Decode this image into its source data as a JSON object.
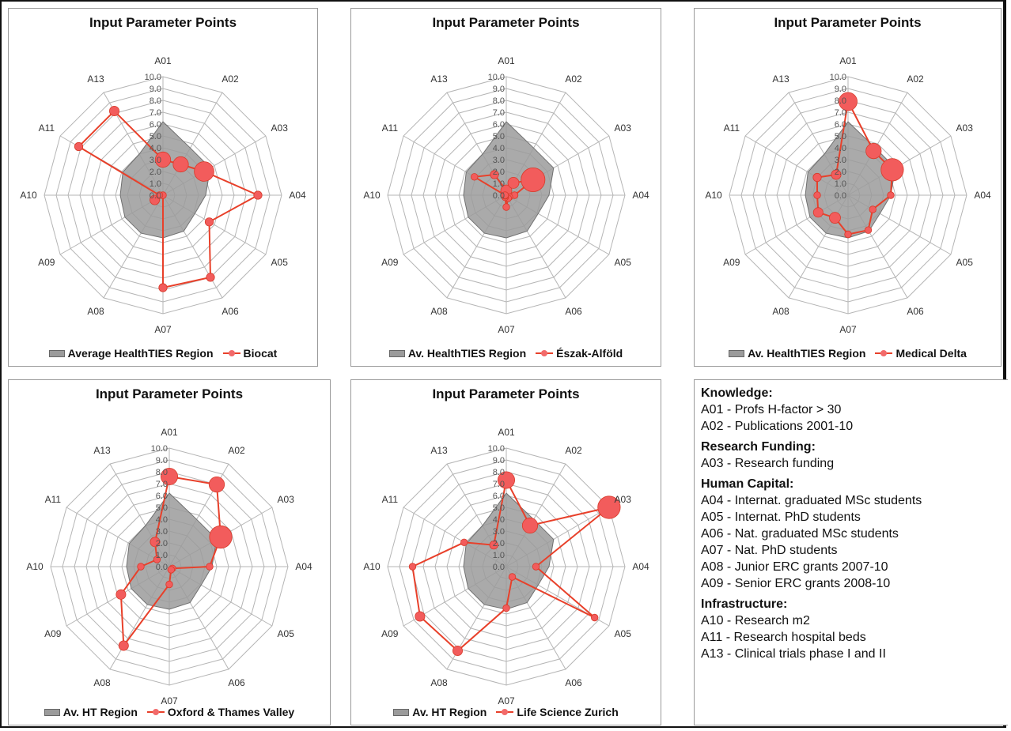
{
  "chart_data": [
    {
      "type": "radar",
      "title": "Input Parameter Points",
      "categories": [
        "A01",
        "A02",
        "A03",
        "A04",
        "A05",
        "A06",
        "A07",
        "A08",
        "A09",
        "A10",
        "A11",
        "A13"
      ],
      "rlim": [
        0,
        10
      ],
      "ticks": [
        "0.0",
        "1.0",
        "2.0",
        "3.0",
        "4.0",
        "5.0",
        "6.0",
        "7.0",
        "8.0",
        "9.0",
        "10.0"
      ],
      "series": [
        {
          "name": "Average HealthTIES Region",
          "style": "area",
          "color": "#9b9b9b",
          "values": [
            6.2,
            4.6,
            4.6,
            3.6,
            3.1,
            3.5,
            3.6,
            3.7,
            3.7,
            3.6,
            3.9,
            4.0
          ]
        },
        {
          "name": "Biocat",
          "style": "line",
          "color": "#e8402a",
          "values": [
            3.0,
            3.0,
            4.0,
            8.0,
            4.5,
            8.0,
            7.8,
            0.0,
            0.8,
            0.3,
            8.2,
            8.2
          ],
          "markers": [
            0.8,
            0.8,
            1.1,
            0.3,
            0.3,
            0.3,
            0.3,
            0.2,
            0.4,
            0.2,
            0.3,
            0.4
          ]
        }
      ],
      "legend": "bottom"
    },
    {
      "type": "radar",
      "title": "Input Parameter Points",
      "categories": [
        "A01",
        "A02",
        "A03",
        "A04",
        "A05",
        "A06",
        "A07",
        "A08",
        "A09",
        "A10",
        "A11",
        "A13"
      ],
      "rlim": [
        0,
        10
      ],
      "ticks": [
        "0.0",
        "1.0",
        "2.0",
        "3.0",
        "4.0",
        "5.0",
        "6.0",
        "7.0",
        "8.0",
        "9.0",
        "10.0"
      ],
      "series": [
        {
          "name": "Av. HealthTIES Region",
          "style": "area",
          "color": "#9b9b9b",
          "values": [
            6.2,
            4.6,
            4.6,
            3.6,
            3.1,
            3.5,
            3.6,
            3.7,
            3.7,
            3.6,
            3.9,
            4.0
          ]
        },
        {
          "name": "Észak-Alföld",
          "style": "line",
          "color": "#e8402a",
          "values": [
            0.4,
            1.2,
            2.6,
            0.7,
            0.3,
            0.3,
            1.0,
            0.2,
            0.1,
            0.1,
            3.1,
            2.0
          ],
          "markers": [
            0.5,
            0.5,
            1.4,
            0.2,
            0.2,
            0.2,
            0.2,
            0.2,
            0.2,
            0.2,
            0.2,
            0.3
          ]
        }
      ],
      "legend": "bottom"
    },
    {
      "type": "radar",
      "title": "Input Parameter Points",
      "categories": [
        "A01",
        "A02",
        "A03",
        "A04",
        "A05",
        "A06",
        "A07",
        "A08",
        "A09",
        "A10",
        "A11",
        "A13"
      ],
      "rlim": [
        0,
        10
      ],
      "ticks": [
        "0.0",
        "1.0",
        "2.0",
        "3.0",
        "4.0",
        "5.0",
        "6.0",
        "7.0",
        "8.0",
        "9.0",
        "10.0"
      ],
      "series": [
        {
          "name": "Av. HealthTIES Region",
          "style": "area",
          "color": "#9b9b9b",
          "values": [
            6.2,
            4.6,
            4.6,
            3.6,
            3.1,
            3.5,
            3.6,
            3.7,
            3.7,
            3.6,
            3.9,
            4.0
          ]
        },
        {
          "name": "Medical Delta",
          "style": "line",
          "color": "#e8402a",
          "values": [
            7.9,
            4.3,
            4.3,
            3.6,
            2.4,
            3.4,
            3.3,
            2.2,
            2.9,
            2.6,
            3.0,
            2.0
          ],
          "markers": [
            1.0,
            0.8,
            1.3,
            0.2,
            0.2,
            0.2,
            0.2,
            0.5,
            0.4,
            0.2,
            0.3,
            0.4
          ]
        }
      ],
      "legend": "bottom"
    },
    {
      "type": "radar",
      "title": "Input Parameter Points",
      "categories": [
        "A01",
        "A02",
        "A03",
        "A04",
        "A05",
        "A06",
        "A07",
        "A08",
        "A09",
        "A10",
        "A11",
        "A13"
      ],
      "rlim": [
        0,
        10
      ],
      "ticks": [
        "0.0",
        "1.0",
        "2.0",
        "3.0",
        "4.0",
        "5.0",
        "6.0",
        "7.0",
        "8.0",
        "9.0",
        "10.0"
      ],
      "series": [
        {
          "name": "Av. HT Region",
          "style": "area",
          "color": "#9b9b9b",
          "values": [
            6.2,
            4.6,
            4.6,
            3.6,
            3.1,
            3.5,
            3.6,
            3.7,
            3.7,
            3.6,
            3.9,
            4.0
          ]
        },
        {
          "name": "Oxford & Thames Valley",
          "style": "line",
          "color": "#e8402a",
          "values": [
            7.6,
            8.0,
            5.0,
            3.4,
            0.3,
            0.3,
            1.5,
            7.7,
            4.7,
            2.4,
            1.2,
            2.4
          ],
          "markers": [
            0.9,
            0.8,
            1.3,
            0.2,
            0.2,
            0.2,
            0.2,
            0.4,
            0.4,
            0.2,
            0.2,
            0.4
          ]
        }
      ],
      "legend": "bottom"
    },
    {
      "type": "radar",
      "title": "Input Parameter Points",
      "categories": [
        "A01",
        "A02",
        "A03",
        "A04",
        "A05",
        "A06",
        "A07",
        "A08",
        "A09",
        "A10",
        "A11",
        "A13"
      ],
      "rlim": [
        0,
        10
      ],
      "ticks": [
        "0.0",
        "1.0",
        "2.0",
        "3.0",
        "4.0",
        "5.0",
        "6.0",
        "7.0",
        "8.0",
        "9.0",
        "10.0"
      ],
      "series": [
        {
          "name": "Av. HT Region",
          "style": "area",
          "color": "#9b9b9b",
          "values": [
            6.2,
            4.6,
            4.6,
            3.6,
            3.1,
            3.5,
            3.6,
            3.7,
            3.7,
            3.6,
            3.9,
            4.0
          ]
        },
        {
          "name": "Life Science Zurich",
          "style": "line",
          "color": "#e8402a",
          "values": [
            7.3,
            4.0,
            10.0,
            2.5,
            8.6,
            1.0,
            3.5,
            8.2,
            8.4,
            7.9,
            4.1,
            2.1
          ],
          "markers": [
            0.9,
            0.8,
            1.3,
            0.2,
            0.2,
            0.2,
            0.2,
            0.4,
            0.4,
            0.2,
            0.2,
            0.3
          ]
        }
      ],
      "legend": "bottom"
    }
  ],
  "notes": {
    "sections": [
      {
        "title": "Knowledge:",
        "items": [
          "A01 - Profs H-factor > 30",
          "A02 - Publications 2001-10"
        ]
      },
      {
        "title": "Research Funding:",
        "items": [
          "A03 - Research funding"
        ]
      },
      {
        "title": "Human Capital:",
        "items": [
          "A04 - Internat. graduated MSc students",
          "A05 - Internat. PhD students",
          "A06 - Nat. graduated MSc students",
          "A07 - Nat. PhD students",
          "A08 - Junior ERC grants 2007-10",
          "A09 - Senior ERC grants 2008-10"
        ]
      },
      {
        "title": "Infrastructure:",
        "items": [
          "A10 - Research m2",
          "A11 - Research hospital beds",
          "A13 - Clinical trials phase I and II"
        ]
      }
    ]
  }
}
